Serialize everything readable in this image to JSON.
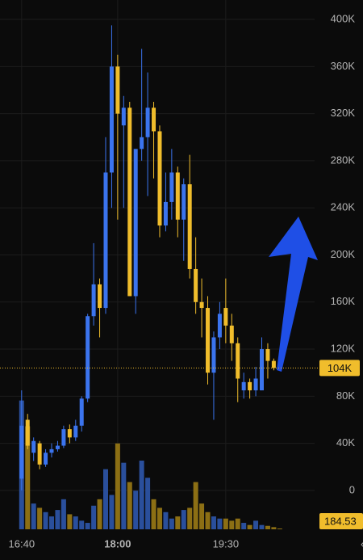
{
  "chart_data": {
    "type": "candlestick",
    "x": [
      "16:40",
      "16:45",
      "16:50",
      "16:55",
      "17:00",
      "17:05",
      "17:10",
      "17:15",
      "17:20",
      "17:25",
      "17:30",
      "17:35",
      "17:40",
      "17:45",
      "17:50",
      "17:55",
      "18:00",
      "18:05",
      "18:10",
      "18:15",
      "18:20",
      "18:25",
      "18:30",
      "18:35",
      "18:40",
      "18:45",
      "18:50",
      "18:55",
      "19:00",
      "19:05",
      "19:10",
      "19:15",
      "19:20",
      "19:25",
      "19:30",
      "19:35",
      "19:40",
      "19:45",
      "19:50",
      "19:55",
      "20:00",
      "20:05",
      "20:10",
      "20:15"
    ],
    "open": [
      10000,
      60000,
      32000,
      40000,
      22000,
      32000,
      35000,
      38000,
      52000,
      45000,
      55000,
      78000,
      148000,
      175000,
      155000,
      270000,
      360000,
      310000,
      325000,
      165000,
      290000,
      300000,
      325000,
      305000,
      225000,
      245000,
      270000,
      230000,
      260000,
      188000,
      160000,
      155000,
      100000,
      130000,
      155000,
      140000,
      125000,
      85000,
      92000,
      85000,
      85000,
      120000,
      110000,
      104000
    ],
    "high": [
      85000,
      65000,
      45000,
      42000,
      35000,
      40000,
      42000,
      55000,
      56000,
      60000,
      80000,
      150000,
      210000,
      180000,
      300000,
      395000,
      370000,
      335000,
      330000,
      290000,
      375000,
      355000,
      330000,
      310000,
      270000,
      290000,
      275000,
      265000,
      285000,
      215000,
      180000,
      165000,
      135000,
      160000,
      180000,
      150000,
      130000,
      100000,
      95000,
      105000,
      130000,
      125000,
      112000,
      106000
    ],
    "low": [
      0,
      35000,
      25000,
      18000,
      20000,
      28000,
      33000,
      36000,
      40000,
      42000,
      50000,
      75000,
      140000,
      130000,
      150000,
      240000,
      230000,
      240000,
      165000,
      150000,
      280000,
      250000,
      265000,
      215000,
      220000,
      230000,
      215000,
      195000,
      180000,
      150000,
      130000,
      90000,
      60000,
      120000,
      125000,
      110000,
      75000,
      78000,
      78000,
      80000,
      85000,
      95000,
      102000,
      103000
    ],
    "close": [
      55000,
      38000,
      42000,
      22000,
      32000,
      35000,
      38000,
      52000,
      45000,
      55000,
      78000,
      148000,
      175000,
      155000,
      270000,
      360000,
      320000,
      325000,
      165000,
      290000,
      300000,
      325000,
      305000,
      225000,
      245000,
      270000,
      230000,
      260000,
      188000,
      160000,
      155000,
      100000,
      130000,
      150000,
      140000,
      125000,
      95000,
      92000,
      85000,
      95000,
      120000,
      110000,
      104000,
      104000
    ],
    "volume": [
      30000,
      24000,
      6000,
      5000,
      4000,
      3000,
      4500,
      7000,
      3500,
      3000,
      2000,
      1500,
      5500,
      7000,
      14000,
      8000,
      20000,
      15500,
      11000,
      9000,
      16000,
      12000,
      7000,
      5000,
      4000,
      2500,
      3000,
      4500,
      5000,
      11000,
      6000,
      4000,
      3000,
      2500,
      2500,
      2000,
      2500,
      1500,
      1000,
      2000,
      1000,
      800,
      500,
      184.53
    ],
    "up_color": "#3b74ee",
    "down_color": "#f0bd2c",
    "volume_up_color": "#2a4f9c",
    "volume_down_color": "#8c6f14",
    "xlim": [
      "16:22",
      "20:44"
    ],
    "xticks": [
      "16:40",
      "18:00",
      "19:30"
    ],
    "ylim": [
      -33000,
      416500
    ],
    "yticks": [
      {
        "value": 400000,
        "label": "400K"
      },
      {
        "value": 360000,
        "label": "360K"
      },
      {
        "value": 320000,
        "label": "320K"
      },
      {
        "value": 280000,
        "label": "280K"
      },
      {
        "value": 240000,
        "label": "240K"
      },
      {
        "value": 200000,
        "label": "200K"
      },
      {
        "value": 160000,
        "label": "160K"
      },
      {
        "value": 120000,
        "label": "120K"
      },
      {
        "value": 80000,
        "label": "80K"
      },
      {
        "value": 40000,
        "label": "40K"
      },
      0
    ],
    "volume_ylim": [
      0,
      32000
    ],
    "last_price": {
      "value": 104000,
      "label": "104K"
    },
    "grid": true
  }
}
